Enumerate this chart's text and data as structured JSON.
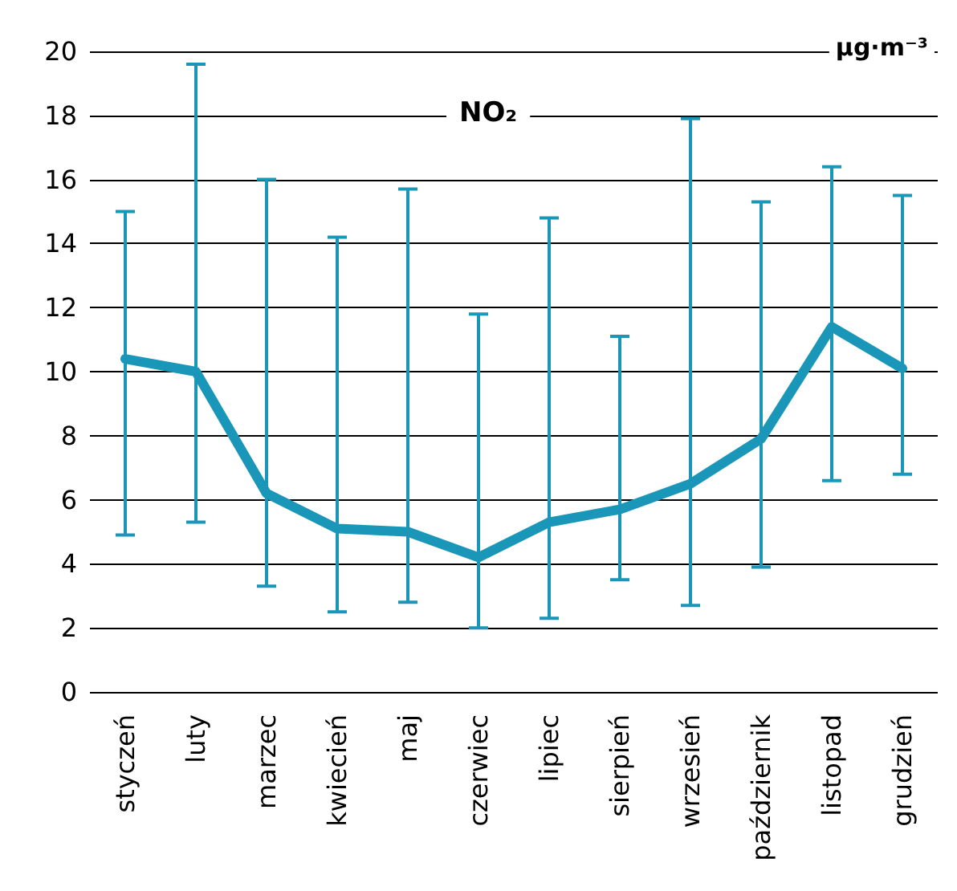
{
  "chart_data": {
    "type": "line",
    "title": "NO₂",
    "ylabel": "µg·m⁻³",
    "categories": [
      "styczeń",
      "luty",
      "marzec",
      "kwiecień",
      "maj",
      "czerwiec",
      "lipiec",
      "sierpień",
      "wrzesień",
      "październik",
      "listopad",
      "grudzień"
    ],
    "series": [
      {
        "color": "#1a97b8",
        "values": [
          10.4,
          10.0,
          6.2,
          5.1,
          5.0,
          4.2,
          5.3,
          5.7,
          6.5,
          7.9,
          11.4,
          10.1
        ],
        "errors": [
          [
            4.9,
            15.0
          ],
          [
            5.3,
            19.6
          ],
          [
            3.3,
            16.0
          ],
          [
            2.5,
            14.2
          ],
          [
            2.8,
            15.7
          ],
          [
            2.0,
            11.8
          ],
          [
            2.3,
            14.8
          ],
          [
            3.5,
            11.1
          ],
          [
            2.7,
            17.9
          ],
          [
            3.9,
            15.3
          ],
          [
            6.6,
            16.4
          ],
          [
            6.8,
            15.5
          ]
        ]
      }
    ],
    "ylim": [
      0,
      20
    ],
    "yticks": [
      0,
      2,
      4,
      6,
      8,
      10,
      12,
      14,
      16,
      18,
      20
    ],
    "grid": "y",
    "marker": "none",
    "line_style": "solid"
  }
}
